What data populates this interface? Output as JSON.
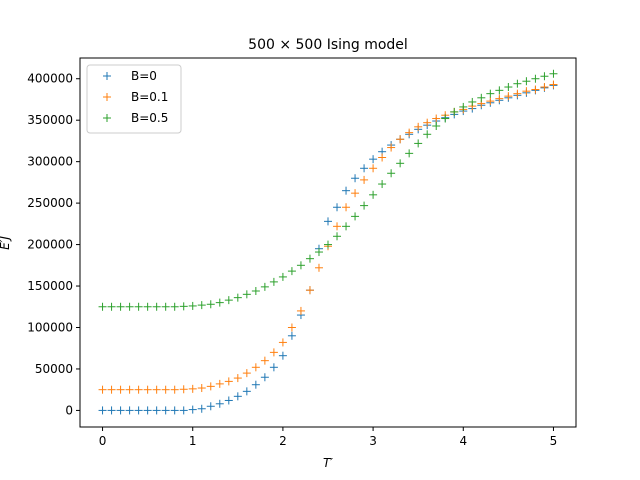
{
  "chart_data": {
    "type": "scatter",
    "title": "500 × 500 Ising model",
    "xlabel": "T′",
    "ylabel": "E′J",
    "xlim": [
      -0.25,
      5.25
    ],
    "ylim": [
      -20000,
      425000
    ],
    "xticks": [
      0,
      1,
      2,
      3,
      4,
      5
    ],
    "yticks": [
      0,
      50000,
      100000,
      150000,
      200000,
      250000,
      300000,
      350000,
      400000
    ],
    "ytick_labels": [
      "0",
      "50000",
      "100000",
      "150000",
      "200000",
      "250000",
      "300000",
      "350000",
      "400000"
    ],
    "legend_position": "top-left",
    "marker": "+",
    "series": [
      {
        "name": "B=0",
        "color": "#1f77b4",
        "x": [
          0.0,
          0.1,
          0.2,
          0.3,
          0.4,
          0.5,
          0.6,
          0.7,
          0.8,
          0.9,
          1.0,
          1.1,
          1.2,
          1.3,
          1.4,
          1.5,
          1.6,
          1.7,
          1.8,
          1.9,
          2.0,
          2.1,
          2.2,
          2.3,
          2.4,
          2.5,
          2.6,
          2.7,
          2.8,
          2.9,
          3.0,
          3.1,
          3.2,
          3.3,
          3.4,
          3.5,
          3.6,
          3.7,
          3.8,
          3.9,
          4.0,
          4.1,
          4.2,
          4.3,
          4.4,
          4.5,
          4.6,
          4.7,
          4.8,
          4.9,
          5.0
        ],
        "y": [
          0,
          0,
          0,
          0,
          0,
          0,
          0,
          0,
          0,
          0,
          1000,
          2000,
          5000,
          8000,
          12000,
          17000,
          23000,
          31000,
          40000,
          52000,
          66000,
          90000,
          115000,
          145000,
          195000,
          228000,
          245000,
          265000,
          280000,
          292000,
          303000,
          312000,
          320000,
          327000,
          333000,
          339000,
          344000,
          349000,
          353000,
          357000,
          361000,
          364000,
          368000,
          371000,
          374000,
          377000,
          380000,
          383000,
          386000,
          389000,
          392000
        ]
      },
      {
        "name": "B=0.1",
        "color": "#ff7f0e",
        "x": [
          0.0,
          0.1,
          0.2,
          0.3,
          0.4,
          0.5,
          0.6,
          0.7,
          0.8,
          0.9,
          1.0,
          1.1,
          1.2,
          1.3,
          1.4,
          1.5,
          1.6,
          1.7,
          1.8,
          1.9,
          2.0,
          2.1,
          2.2,
          2.3,
          2.4,
          2.5,
          2.6,
          2.7,
          2.8,
          2.9,
          3.0,
          3.1,
          3.2,
          3.3,
          3.4,
          3.5,
          3.6,
          3.7,
          3.8,
          3.9,
          4.0,
          4.1,
          4.2,
          4.3,
          4.4,
          4.5,
          4.6,
          4.7,
          4.8,
          4.9,
          5.0
        ],
        "y": [
          25000,
          25000,
          25000,
          25000,
          25000,
          25000,
          25000,
          25000,
          25000,
          25500,
          26000,
          27000,
          29000,
          32000,
          35000,
          39000,
          45000,
          52000,
          60000,
          70000,
          82000,
          100000,
          120000,
          145000,
          172000,
          198000,
          222000,
          245000,
          262000,
          278000,
          292000,
          305000,
          317000,
          327000,
          335000,
          342000,
          347000,
          352000,
          356000,
          360000,
          363000,
          367000,
          370000,
          373000,
          376000,
          379000,
          382000,
          385000,
          387000,
          390000,
          393000
        ]
      },
      {
        "name": "B=0.5",
        "color": "#2ca02c",
        "x": [
          0.0,
          0.1,
          0.2,
          0.3,
          0.4,
          0.5,
          0.6,
          0.7,
          0.8,
          0.9,
          1.0,
          1.1,
          1.2,
          1.3,
          1.4,
          1.5,
          1.6,
          1.7,
          1.8,
          1.9,
          2.0,
          2.1,
          2.2,
          2.3,
          2.4,
          2.5,
          2.6,
          2.7,
          2.8,
          2.9,
          3.0,
          3.1,
          3.2,
          3.3,
          3.4,
          3.5,
          3.6,
          3.7,
          3.8,
          3.9,
          4.0,
          4.1,
          4.2,
          4.3,
          4.4,
          4.5,
          4.6,
          4.7,
          4.8,
          4.9,
          5.0
        ],
        "y": [
          125000,
          125000,
          125000,
          125000,
          125000,
          125000,
          125000,
          125000,
          125000,
          125500,
          126000,
          127000,
          128000,
          130000,
          133000,
          136000,
          140000,
          144000,
          149000,
          155000,
          161000,
          168000,
          175000,
          183000,
          191000,
          200000,
          210000,
          222000,
          234000,
          247000,
          260000,
          273000,
          286000,
          298000,
          310000,
          322000,
          333000,
          343000,
          352000,
          360000,
          366000,
          372000,
          377000,
          382000,
          386000,
          390000,
          394000,
          397000,
          400000,
          403000,
          406000
        ]
      }
    ]
  }
}
